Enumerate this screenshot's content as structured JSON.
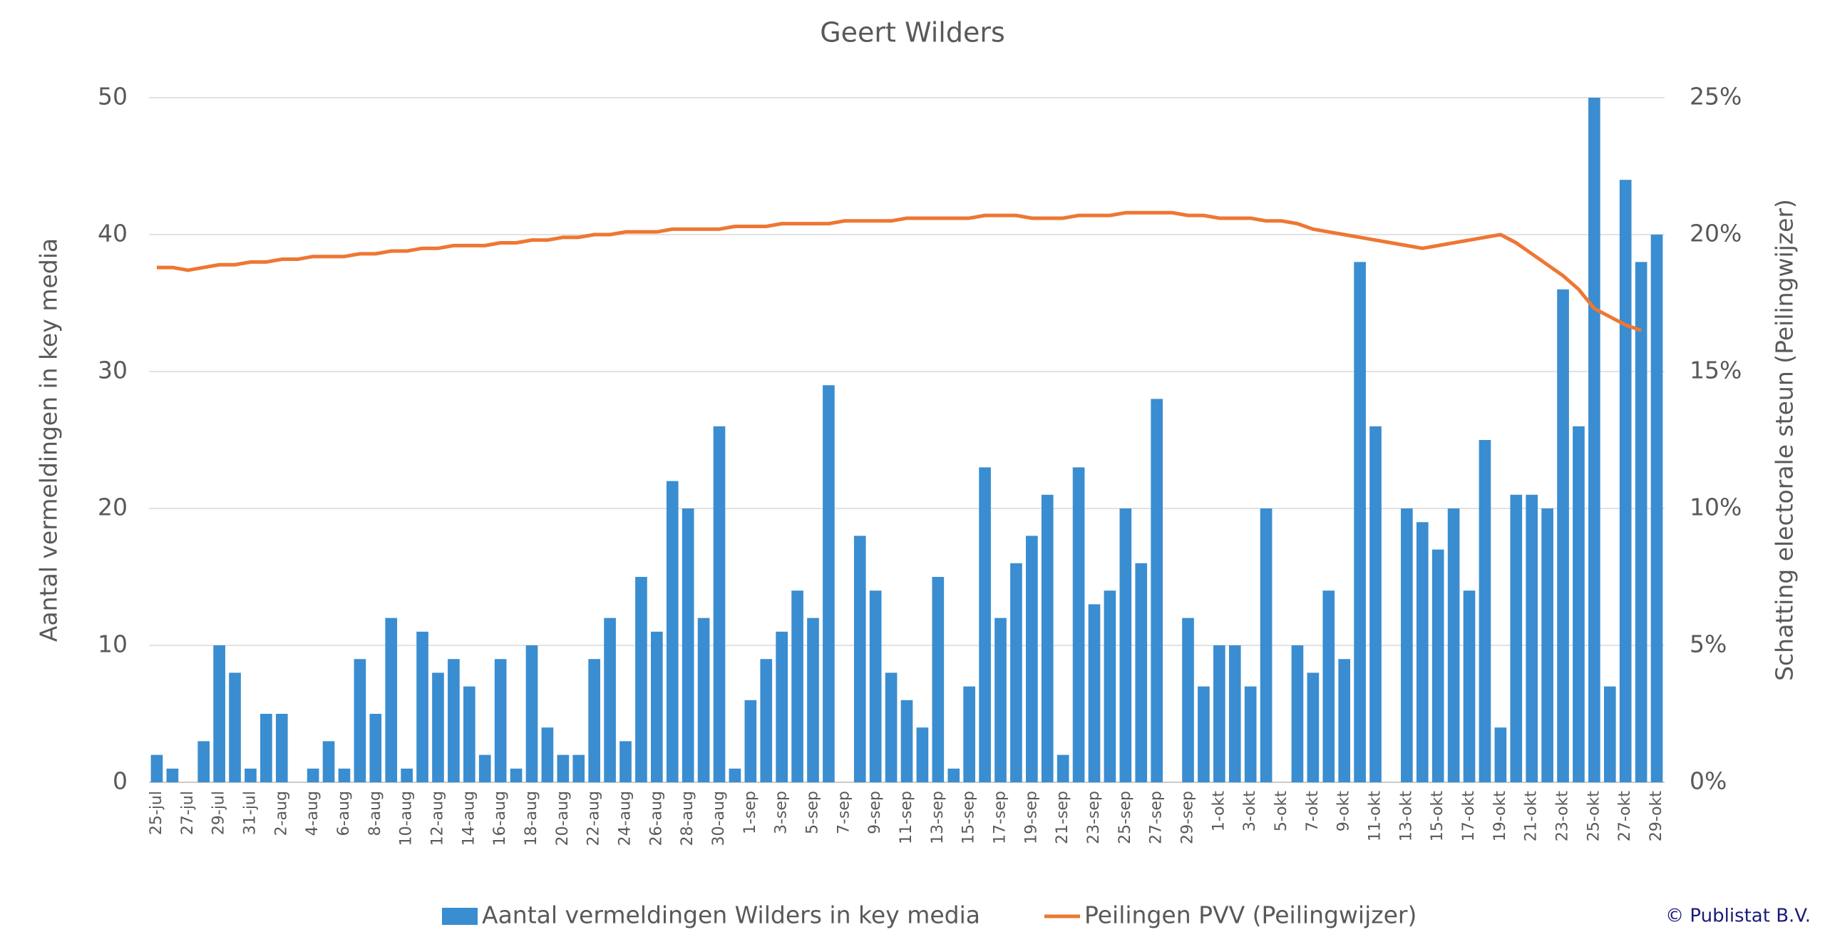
{
  "chart_data": {
    "type": "bar-line",
    "title": "Geert Wilders",
    "y_label": "Aantal vermeldingen in key media",
    "y2_label": "Schatting electorale steun (Peilingwijzer)",
    "copyright": "© Publistat B.V.",
    "categories": [
      "25-jul",
      null,
      "27-jul",
      null,
      "29-jul",
      null,
      "31-jul",
      null,
      "2-aug",
      null,
      "4-aug",
      null,
      "6-aug",
      null,
      "8-aug",
      null,
      "10-aug",
      null,
      "12-aug",
      null,
      "14-aug",
      null,
      "16-aug",
      null,
      "18-aug",
      null,
      "20-aug",
      null,
      "22-aug",
      null,
      "24-aug",
      null,
      "26-aug",
      null,
      "28-aug",
      null,
      "30-aug",
      null,
      "1-sep",
      null,
      "3-sep",
      null,
      "5-sep",
      null,
      "7-sep",
      null,
      "9-sep",
      null,
      "11-sep",
      null,
      "13-sep",
      null,
      "15-sep",
      null,
      "17-sep",
      null,
      "19-sep",
      null,
      "21-sep",
      null,
      "23-sep",
      null,
      "25-sep",
      null,
      "27-sep",
      null,
      "29-sep",
      null,
      "1-okt",
      null,
      "3-okt",
      null,
      "5-okt",
      null,
      "7-okt",
      null,
      "9-okt",
      null,
      "11-okt",
      null,
      "13-okt",
      null,
      "15-okt",
      null,
      "17-okt",
      null,
      "19-okt",
      null,
      "21-okt",
      null,
      "23-okt",
      null,
      "25-okt",
      null,
      "27-okt",
      null,
      "29-okt"
    ],
    "series": [
      {
        "name": "Aantal vermeldingen Wilders in key media",
        "type": "bar",
        "color": "#3a8dd0",
        "values": [
          2,
          1,
          0,
          3,
          10,
          8,
          1,
          5,
          5,
          0,
          1,
          3,
          1,
          9,
          5,
          12,
          1,
          11,
          8,
          9,
          7,
          2,
          9,
          1,
          10,
          4,
          2,
          2,
          9,
          12,
          3,
          15,
          11,
          22,
          20,
          12,
          26,
          1,
          6,
          9,
          11,
          14,
          12,
          29,
          0,
          18,
          14,
          8,
          6,
          4,
          15,
          1,
          7,
          23,
          12,
          16,
          18,
          21,
          2,
          23,
          13,
          14,
          20,
          16,
          28,
          0,
          12,
          7,
          10,
          10,
          7,
          20,
          0,
          10,
          8,
          14,
          9,
          38,
          26,
          0,
          20,
          19,
          17,
          20,
          14,
          25,
          4,
          21,
          21,
          20,
          36,
          26,
          50,
          7,
          44,
          38,
          40
        ]
      },
      {
        "name": "Peilingen PVV (Peilingwijzer)",
        "type": "line",
        "axis": "y2",
        "color": "#ee7733",
        "values": [
          18.8,
          18.8,
          18.7,
          18.8,
          18.9,
          18.9,
          19.0,
          19.0,
          19.1,
          19.1,
          19.2,
          19.2,
          19.2,
          19.3,
          19.3,
          19.4,
          19.4,
          19.5,
          19.5,
          19.6,
          19.6,
          19.6,
          19.7,
          19.7,
          19.8,
          19.8,
          19.9,
          19.9,
          20.0,
          20.0,
          20.1,
          20.1,
          20.1,
          20.2,
          20.2,
          20.2,
          20.2,
          20.3,
          20.3,
          20.3,
          20.4,
          20.4,
          20.4,
          20.4,
          20.5,
          20.5,
          20.5,
          20.5,
          20.6,
          20.6,
          20.6,
          20.6,
          20.6,
          20.7,
          20.7,
          20.7,
          20.6,
          20.6,
          20.6,
          20.7,
          20.7,
          20.7,
          20.8,
          20.8,
          20.8,
          20.8,
          20.7,
          20.7,
          20.6,
          20.6,
          20.6,
          20.5,
          20.5,
          20.4,
          20.2,
          20.1,
          20.0,
          19.9,
          19.8,
          19.7,
          19.6,
          19.5,
          19.6,
          19.7,
          19.8,
          19.9,
          20.0,
          19.7,
          19.3,
          18.9,
          18.5,
          18.0,
          17.3,
          17.0,
          16.7,
          16.5,
          null
        ]
      }
    ],
    "ylim": [
      0,
      50
    ],
    "yticks": [
      0,
      10,
      20,
      30,
      40,
      50
    ],
    "y2lim": [
      0,
      25
    ],
    "y2ticks": [
      {
        "value": 0,
        "label": "0%"
      },
      {
        "value": 5,
        "label": "5%"
      },
      {
        "value": 10,
        "label": "10%"
      },
      {
        "value": 15,
        "label": "15%"
      },
      {
        "value": 20,
        "label": "20%"
      },
      {
        "value": 25,
        "label": "25%"
      }
    ],
    "grid": true,
    "legend": "bottom"
  }
}
